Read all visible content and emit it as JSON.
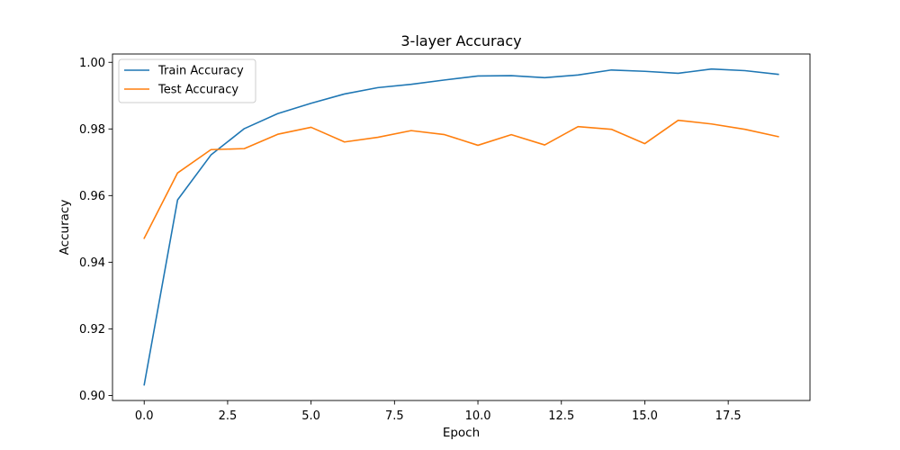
{
  "chart_data": {
    "type": "line",
    "title": "3-layer Accuracy",
    "xlabel": "Epoch",
    "ylabel": "Accuracy",
    "xlim": [
      -0.95,
      19.95
    ],
    "ylim": [
      0.8985,
      1.0025
    ],
    "xticks": [
      0.0,
      2.5,
      5.0,
      7.5,
      10.0,
      12.5,
      15.0,
      17.5
    ],
    "xtick_labels": [
      "0.0",
      "2.5",
      "5.0",
      "7.5",
      "10.0",
      "12.5",
      "15.0",
      "17.5"
    ],
    "yticks": [
      0.9,
      0.92,
      0.94,
      0.96,
      0.98,
      1.0
    ],
    "ytick_labels": [
      "0.90",
      "0.92",
      "0.94",
      "0.96",
      "0.98",
      "1.00"
    ],
    "grid": false,
    "legend_position": "upper-left",
    "x": [
      0,
      1,
      2,
      3,
      4,
      5,
      6,
      7,
      8,
      9,
      10,
      11,
      12,
      13,
      14,
      15,
      16,
      17,
      18,
      19
    ],
    "series": [
      {
        "name": "Train Accuracy",
        "color": "#1f77b4",
        "values": [
          0.9032,
          0.9587,
          0.9722,
          0.9801,
          0.9846,
          0.9877,
          0.9905,
          0.9924,
          0.9934,
          0.9947,
          0.9959,
          0.996,
          0.9954,
          0.9962,
          0.9977,
          0.9973,
          0.9967,
          0.998,
          0.9975,
          0.9964
        ]
      },
      {
        "name": "Test Accuracy",
        "color": "#ff7f0e",
        "values": [
          0.9472,
          0.9668,
          0.9738,
          0.9741,
          0.9784,
          0.9805,
          0.9761,
          0.9775,
          0.9795,
          0.9783,
          0.9751,
          0.9783,
          0.9752,
          0.9807,
          0.9799,
          0.9756,
          0.9826,
          0.9815,
          0.9799,
          0.9777
        ]
      }
    ]
  }
}
